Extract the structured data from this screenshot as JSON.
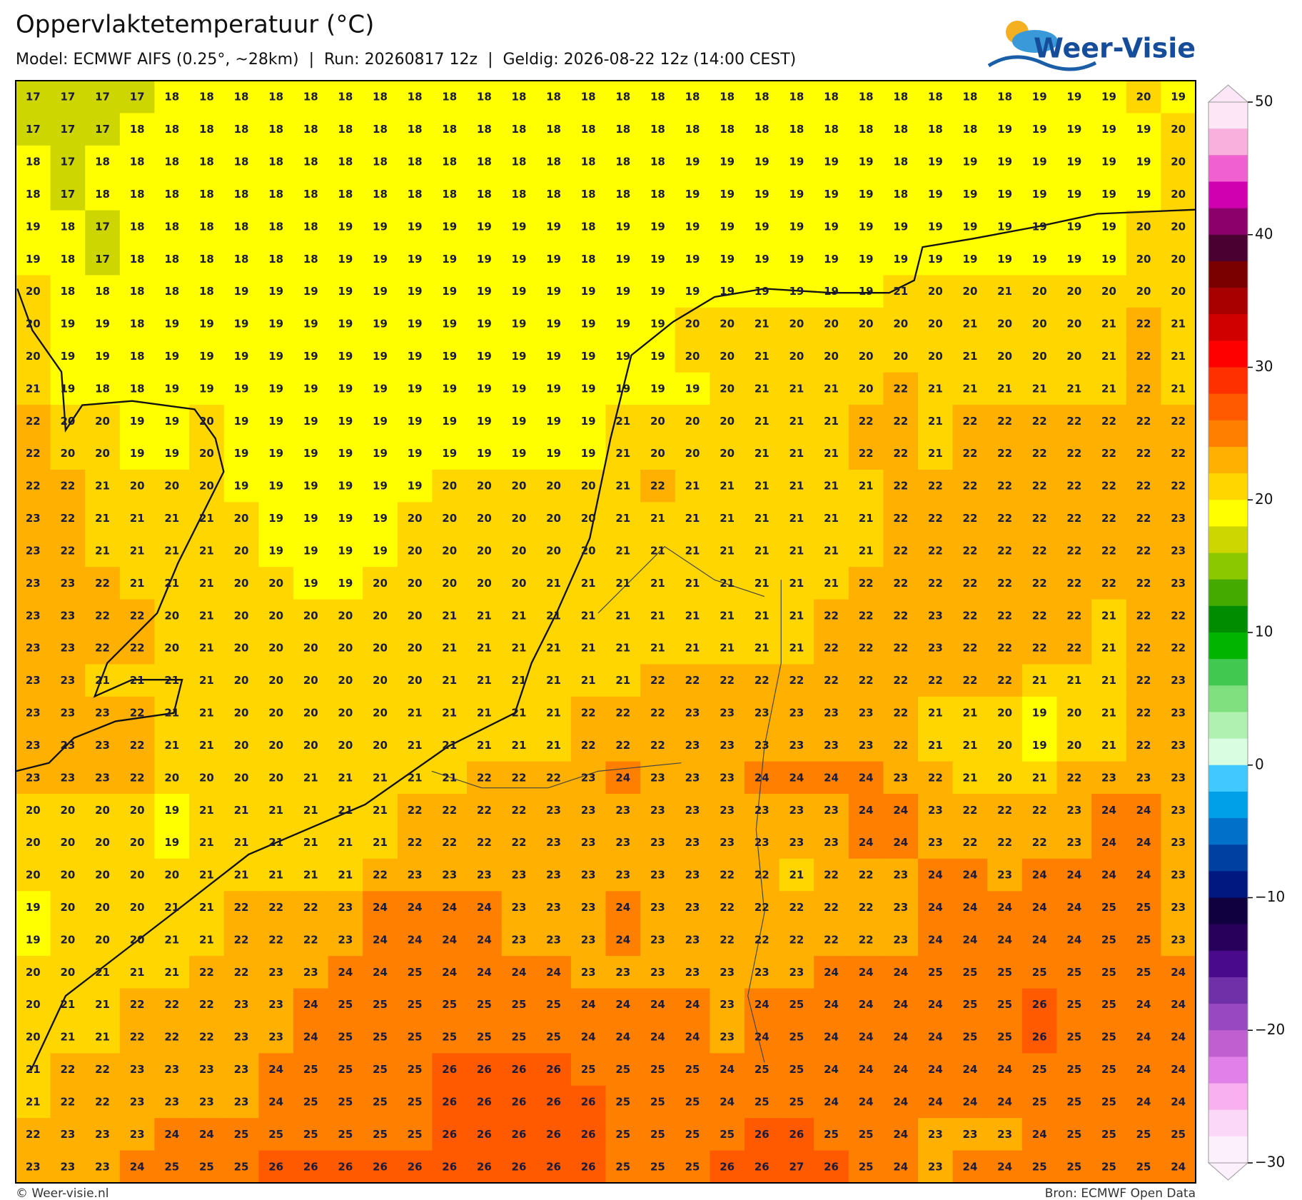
{
  "header": {
    "title": "Oppervlaktetemperatuur (°C)",
    "subtitle": "Model: ECMWF AIFS (0.25°, ~28km)  |  Run: 20260817 12z  |  Geldig: 2026-08-22 12z (14:00 CEST)",
    "logo": "Weer-Visie"
  },
  "grid": {
    "rows": [
      [
        17,
        17,
        17,
        17,
        18,
        18,
        18,
        18,
        18,
        18,
        18,
        18,
        18,
        18,
        18,
        18,
        18,
        18,
        18,
        18,
        18,
        18,
        18,
        18,
        18,
        18,
        18,
        18,
        18,
        19,
        19,
        19,
        20,
        19
      ],
      [
        17,
        17,
        17,
        18,
        18,
        18,
        18,
        18,
        18,
        18,
        18,
        18,
        18,
        18,
        18,
        18,
        18,
        18,
        18,
        18,
        18,
        18,
        18,
        18,
        18,
        18,
        18,
        18,
        19,
        19,
        19,
        19,
        19,
        20
      ],
      [
        18,
        17,
        18,
        18,
        18,
        18,
        18,
        18,
        18,
        18,
        18,
        18,
        18,
        18,
        18,
        18,
        18,
        18,
        18,
        19,
        19,
        19,
        19,
        19,
        19,
        18,
        19,
        19,
        19,
        19,
        19,
        19,
        19,
        20
      ],
      [
        18,
        17,
        18,
        18,
        18,
        18,
        18,
        18,
        18,
        18,
        18,
        18,
        18,
        18,
        18,
        18,
        18,
        18,
        18,
        19,
        19,
        19,
        19,
        19,
        19,
        18,
        19,
        19,
        19,
        19,
        19,
        19,
        19,
        20
      ],
      [
        19,
        18,
        17,
        18,
        18,
        18,
        18,
        18,
        18,
        19,
        19,
        19,
        19,
        19,
        19,
        19,
        18,
        19,
        19,
        19,
        19,
        19,
        19,
        19,
        19,
        19,
        19,
        19,
        19,
        19,
        19,
        19,
        20,
        20
      ],
      [
        19,
        18,
        17,
        18,
        18,
        18,
        18,
        18,
        18,
        19,
        19,
        19,
        19,
        19,
        19,
        19,
        18,
        19,
        19,
        19,
        19,
        19,
        19,
        19,
        19,
        19,
        19,
        19,
        19,
        19,
        19,
        19,
        20,
        20
      ],
      [
        20,
        18,
        18,
        18,
        18,
        18,
        19,
        19,
        19,
        19,
        19,
        19,
        19,
        19,
        19,
        19,
        19,
        19,
        19,
        19,
        19,
        19,
        19,
        19,
        19,
        21,
        20,
        20,
        21,
        20,
        20,
        20,
        20,
        20
      ],
      [
        20,
        19,
        19,
        18,
        19,
        19,
        19,
        19,
        19,
        19,
        19,
        19,
        19,
        19,
        19,
        19,
        19,
        19,
        19,
        20,
        20,
        21,
        20,
        20,
        20,
        20,
        20,
        21,
        20,
        20,
        20,
        21,
        22,
        21
      ],
      [
        20,
        19,
        19,
        18,
        19,
        19,
        19,
        19,
        19,
        19,
        19,
        19,
        19,
        19,
        19,
        19,
        19,
        19,
        19,
        20,
        20,
        21,
        20,
        20,
        20,
        20,
        20,
        21,
        20,
        20,
        20,
        21,
        22,
        21
      ],
      [
        21,
        19,
        18,
        18,
        19,
        19,
        19,
        19,
        19,
        19,
        19,
        19,
        19,
        19,
        19,
        19,
        19,
        19,
        19,
        19,
        20,
        21,
        21,
        21,
        20,
        22,
        21,
        21,
        21,
        21,
        21,
        21,
        22,
        21
      ],
      [
        22,
        20,
        20,
        19,
        19,
        20,
        19,
        19,
        19,
        19,
        19,
        19,
        19,
        19,
        19,
        19,
        19,
        21,
        20,
        20,
        20,
        21,
        21,
        21,
        22,
        22,
        21,
        22,
        22,
        22,
        22,
        22,
        22,
        22
      ],
      [
        22,
        20,
        20,
        19,
        19,
        20,
        19,
        19,
        19,
        19,
        19,
        19,
        19,
        19,
        19,
        19,
        19,
        21,
        20,
        20,
        20,
        21,
        21,
        21,
        22,
        22,
        21,
        22,
        22,
        22,
        22,
        22,
        22,
        22
      ],
      [
        22,
        22,
        21,
        20,
        20,
        20,
        19,
        19,
        19,
        19,
        19,
        19,
        20,
        20,
        20,
        20,
        20,
        21,
        22,
        21,
        21,
        21,
        21,
        21,
        21,
        22,
        22,
        22,
        22,
        22,
        22,
        22,
        22,
        22
      ],
      [
        23,
        22,
        21,
        21,
        21,
        21,
        20,
        19,
        19,
        19,
        19,
        20,
        20,
        20,
        20,
        20,
        20,
        21,
        21,
        21,
        21,
        21,
        21,
        21,
        21,
        22,
        22,
        22,
        22,
        22,
        22,
        22,
        22,
        23
      ],
      [
        23,
        22,
        21,
        21,
        21,
        21,
        20,
        19,
        19,
        19,
        19,
        20,
        20,
        20,
        20,
        20,
        20,
        21,
        21,
        21,
        21,
        21,
        21,
        21,
        21,
        22,
        22,
        22,
        22,
        22,
        22,
        22,
        22,
        23
      ],
      [
        23,
        23,
        22,
        21,
        21,
        21,
        20,
        20,
        19,
        19,
        20,
        20,
        20,
        20,
        20,
        21,
        21,
        21,
        21,
        21,
        21,
        21,
        21,
        21,
        22,
        22,
        22,
        22,
        22,
        22,
        22,
        22,
        22,
        23
      ],
      [
        23,
        23,
        22,
        22,
        20,
        21,
        20,
        20,
        20,
        20,
        20,
        20,
        21,
        21,
        21,
        21,
        21,
        21,
        21,
        21,
        21,
        21,
        21,
        22,
        22,
        22,
        23,
        22,
        22,
        22,
        22,
        21,
        22,
        22
      ],
      [
        23,
        23,
        22,
        22,
        20,
        21,
        20,
        20,
        20,
        20,
        20,
        20,
        21,
        21,
        21,
        21,
        21,
        21,
        21,
        21,
        21,
        21,
        21,
        22,
        22,
        22,
        23,
        22,
        22,
        22,
        22,
        21,
        22,
        22
      ],
      [
        23,
        23,
        21,
        21,
        21,
        21,
        20,
        20,
        20,
        20,
        20,
        20,
        21,
        21,
        21,
        21,
        21,
        21,
        22,
        22,
        22,
        22,
        22,
        22,
        22,
        22,
        22,
        22,
        22,
        21,
        21,
        21,
        22,
        23
      ],
      [
        23,
        23,
        23,
        22,
        21,
        21,
        20,
        20,
        20,
        20,
        20,
        21,
        21,
        21,
        21,
        21,
        22,
        22,
        22,
        23,
        23,
        23,
        23,
        23,
        23,
        22,
        21,
        21,
        20,
        19,
        20,
        21,
        22,
        23
      ],
      [
        23,
        23,
        23,
        22,
        21,
        21,
        20,
        20,
        20,
        20,
        20,
        21,
        21,
        21,
        21,
        21,
        22,
        22,
        22,
        23,
        23,
        23,
        23,
        23,
        23,
        22,
        21,
        21,
        20,
        19,
        20,
        21,
        22,
        23
      ],
      [
        23,
        23,
        23,
        22,
        20,
        20,
        20,
        20,
        21,
        21,
        21,
        21,
        21,
        22,
        22,
        22,
        23,
        24,
        23,
        23,
        23,
        24,
        24,
        24,
        24,
        23,
        22,
        21,
        20,
        21,
        22,
        23,
        23,
        23
      ],
      [
        20,
        20,
        20,
        20,
        19,
        21,
        21,
        21,
        21,
        21,
        21,
        22,
        22,
        22,
        22,
        23,
        23,
        23,
        23,
        23,
        23,
        23,
        23,
        23,
        24,
        24,
        23,
        22,
        22,
        22,
        23,
        24,
        24,
        23
      ],
      [
        20,
        20,
        20,
        20,
        19,
        21,
        21,
        21,
        21,
        21,
        21,
        22,
        22,
        22,
        22,
        23,
        23,
        23,
        23,
        23,
        23,
        23,
        23,
        23,
        24,
        24,
        23,
        22,
        22,
        22,
        23,
        24,
        24,
        23
      ],
      [
        20,
        20,
        20,
        20,
        20,
        21,
        21,
        21,
        21,
        21,
        22,
        23,
        23,
        23,
        23,
        23,
        23,
        23,
        23,
        23,
        22,
        22,
        21,
        22,
        22,
        23,
        24,
        24,
        23,
        24,
        24,
        24,
        24,
        23
      ],
      [
        19,
        20,
        20,
        20,
        21,
        21,
        22,
        22,
        22,
        23,
        24,
        24,
        24,
        24,
        23,
        23,
        23,
        24,
        23,
        23,
        22,
        22,
        22,
        22,
        22,
        23,
        24,
        24,
        24,
        24,
        24,
        25,
        25,
        23
      ],
      [
        19,
        20,
        20,
        20,
        21,
        21,
        22,
        22,
        22,
        23,
        24,
        24,
        24,
        24,
        23,
        23,
        23,
        24,
        23,
        23,
        22,
        22,
        22,
        22,
        22,
        23,
        24,
        24,
        24,
        24,
        24,
        25,
        25,
        23
      ],
      [
        20,
        20,
        21,
        21,
        21,
        22,
        22,
        23,
        23,
        24,
        24,
        25,
        24,
        24,
        24,
        24,
        23,
        23,
        23,
        23,
        23,
        23,
        23,
        24,
        24,
        24,
        25,
        25,
        25,
        25,
        25,
        25,
        25,
        24
      ],
      [
        20,
        21,
        21,
        22,
        22,
        22,
        23,
        23,
        24,
        25,
        25,
        25,
        25,
        25,
        25,
        25,
        24,
        24,
        24,
        24,
        23,
        24,
        25,
        24,
        24,
        24,
        24,
        25,
        25,
        26,
        25,
        25,
        24,
        24
      ],
      [
        20,
        21,
        21,
        22,
        22,
        22,
        23,
        23,
        24,
        25,
        25,
        25,
        25,
        25,
        25,
        25,
        24,
        24,
        24,
        24,
        23,
        24,
        25,
        24,
        24,
        24,
        24,
        25,
        25,
        26,
        25,
        25,
        24,
        24
      ],
      [
        21,
        22,
        22,
        23,
        23,
        23,
        23,
        24,
        25,
        25,
        25,
        25,
        26,
        26,
        26,
        26,
        25,
        25,
        25,
        25,
        24,
        25,
        25,
        24,
        24,
        24,
        24,
        24,
        24,
        25,
        25,
        25,
        24,
        24
      ],
      [
        21,
        22,
        22,
        23,
        23,
        23,
        23,
        24,
        25,
        25,
        25,
        25,
        26,
        26,
        26,
        26,
        26,
        25,
        25,
        25,
        24,
        25,
        25,
        24,
        24,
        24,
        24,
        24,
        24,
        25,
        25,
        25,
        24,
        24
      ],
      [
        22,
        23,
        23,
        23,
        24,
        24,
        25,
        25,
        25,
        25,
        25,
        25,
        26,
        26,
        26,
        26,
        26,
        25,
        25,
        25,
        25,
        26,
        26,
        25,
        25,
        24,
        23,
        23,
        23,
        24,
        25,
        25,
        25,
        25
      ],
      [
        23,
        23,
        23,
        24,
        25,
        25,
        25,
        26,
        26,
        26,
        26,
        26,
        26,
        26,
        26,
        26,
        26,
        25,
        25,
        25,
        26,
        26,
        27,
        26,
        25,
        24,
        23,
        24,
        24,
        25,
        25,
        25,
        25,
        24
      ]
    ]
  },
  "colorbar": {
    "lim": [
      -30,
      50
    ],
    "ticks": [
      50,
      40,
      30,
      20,
      10,
      0,
      {
        "value": -10,
        "label": "−10"
      },
      {
        "value": -20,
        "label": "−20"
      },
      {
        "value": -30,
        "label": "−30"
      }
    ],
    "colors": [
      "#fde6f6",
      "#f9b0dd",
      "#f060d0",
      "#d000b0",
      "#8c006c",
      "#4a0030",
      "#7a0000",
      "#a80000",
      "#d00000",
      "#ff0000",
      "#ff3000",
      "#ff5a00",
      "#ff8000",
      "#ffb000",
      "#ffd600",
      "#ffff00",
      "#cdd600",
      "#8cc800",
      "#44aa00",
      "#008c00",
      "#00b400",
      "#40c850",
      "#80e080",
      "#b0f0b0",
      "#d8fde0",
      "#40c8ff",
      "#00a0e8",
      "#0070c8",
      "#0040a0",
      "#001880",
      "#100040",
      "#28005c",
      "#4a0a8c",
      "#7030a8",
      "#9848c0",
      "#c060d0",
      "#e080e8",
      "#f8b0f0",
      "#fcd8f8",
      "#fdf0fd"
    ]
  },
  "footer": {
    "copyright": "© Weer-visie.nl",
    "source": "Bron: ECMWF Open Data"
  }
}
